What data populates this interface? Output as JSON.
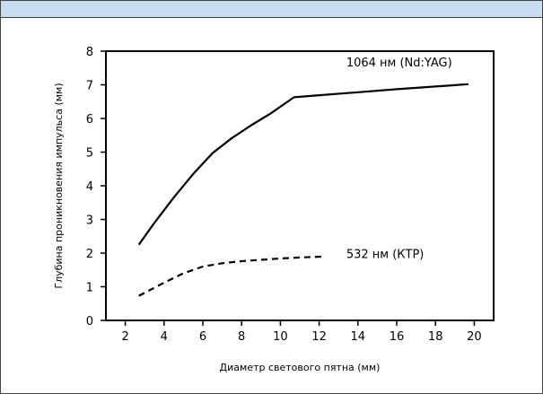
{
  "header": {
    "band_color": "#c9ddf2"
  },
  "chart_data": {
    "type": "line",
    "title": "",
    "xlabel": "Диаметр светового пятна (мм)",
    "ylabel": "Глубина проникновения импульса (мм)",
    "xlim": [
      1,
      21
    ],
    "ylim": [
      0,
      8
    ],
    "xticks": [
      2,
      4,
      6,
      8,
      10,
      12,
      14,
      16,
      18,
      20
    ],
    "yticks": [
      0,
      1,
      2,
      3,
      4,
      5,
      6,
      7,
      8
    ],
    "grid": false,
    "legend": "none",
    "series": [
      {
        "name": "1064 нм (Nd:YAG)",
        "style": "solid",
        "color": "#000000",
        "x": [
          2.7,
          3.5,
          4.5,
          5.5,
          6.5,
          7.5,
          8.5,
          9.5,
          10.7,
          12,
          14,
          16,
          18,
          19.7
        ],
        "y": [
          2.25,
          2.9,
          3.65,
          4.35,
          4.97,
          5.42,
          5.8,
          6.15,
          6.63,
          6.69,
          6.78,
          6.87,
          6.95,
          7.02
        ]
      },
      {
        "name": "532 нм (КТР)",
        "style": "dashed",
        "color": "#000000",
        "x": [
          2.7,
          4,
          5,
          6,
          7,
          8,
          9,
          10,
          11,
          12.3
        ],
        "y": [
          0.73,
          1.12,
          1.4,
          1.6,
          1.7,
          1.76,
          1.8,
          1.84,
          1.87,
          1.9
        ]
      }
    ]
  }
}
